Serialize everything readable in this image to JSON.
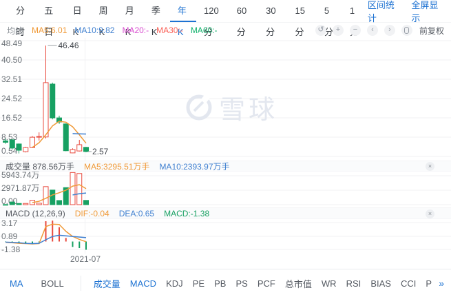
{
  "icons": {
    "close": "×",
    "undo": "↺",
    "zoom_in": "+",
    "zoom_out": "−",
    "prev": "‹",
    "next": "›",
    "more": "»"
  },
  "top_toolbar": {
    "periods": [
      {
        "label": "分时",
        "active": false
      },
      {
        "label": "五日",
        "active": false
      },
      {
        "label": "日K",
        "active": false
      },
      {
        "label": "周K",
        "active": false
      },
      {
        "label": "月K",
        "active": false
      },
      {
        "label": "季K",
        "active": false
      },
      {
        "label": "年K",
        "active": true
      },
      {
        "label": "120分",
        "active": false
      },
      {
        "label": "60分",
        "active": false
      },
      {
        "label": "30分",
        "active": false
      },
      {
        "label": "15分",
        "active": false
      },
      {
        "label": "5分",
        "active": false
      },
      {
        "label": "1分",
        "active": false
      }
    ],
    "right_links": [
      {
        "label": "区间统计",
        "name": "range-stat-link"
      },
      {
        "label": "全屏显示",
        "name": "fullscreen-link"
      }
    ]
  },
  "legend": {
    "title": "均线",
    "items": [
      {
        "label": "MA5:6.01",
        "color": "#f09a38"
      },
      {
        "label": "MA10:9.82",
        "color": "#4080d0"
      },
      {
        "label": "MA20:-",
        "color": "#d94fd0"
      },
      {
        "label": "MA30:-",
        "color": "#fa6057"
      },
      {
        "label": "MA60:-",
        "color": "#13b26d"
      }
    ],
    "buttons": [
      "undo",
      "zoom-in",
      "zoom-out",
      "pan-left",
      "pan-right",
      "screenshot"
    ],
    "adjust_label": "前复权"
  },
  "watermark": "雪球",
  "volume_header": {
    "title": "成交量 878.56万手",
    "ma5": "MA5:3295.51万手",
    "ma10": "MA10:2393.97万手"
  },
  "macd_header": {
    "title": "MACD (12,26,9)",
    "dif": "DIF:-0.04",
    "dea": "DEA:0.65",
    "macd": "MACD:-1.38"
  },
  "bottom_toolbar": {
    "left_group": [
      {
        "label": "MA",
        "active": true
      },
      {
        "label": "BOLL",
        "active": false
      }
    ],
    "indicators": [
      {
        "label": "成交量",
        "active": true
      },
      {
        "label": "MACD",
        "active": true
      },
      {
        "label": "KDJ",
        "active": false
      },
      {
        "label": "PE",
        "active": false
      },
      {
        "label": "PB",
        "active": false
      },
      {
        "label": "PS",
        "active": false
      },
      {
        "label": "PCF",
        "active": false
      },
      {
        "label": "总市值",
        "active": false
      },
      {
        "label": "WR",
        "active": false
      },
      {
        "label": "RSI",
        "active": false
      },
      {
        "label": "BIAS",
        "active": false
      },
      {
        "label": "CCI",
        "active": false
      },
      {
        "label": "P",
        "active": false
      }
    ]
  },
  "chart_data": {
    "type": "candlestick-multi-panel",
    "x_label": "2021-07",
    "colors": {
      "up": "#e8493d",
      "down": "#17a062",
      "ma5": "#f09a38",
      "ma10": "#4080d0",
      "grid": "#f0f1f3",
      "axis_text": "#6b7177",
      "annotation": "#42464c"
    },
    "price_panel": {
      "y_ticks": [
        "48.49",
        "40.50",
        "32.51",
        "24.52",
        "16.52",
        "8.53",
        "0.54"
      ],
      "candles": [
        {
          "o": 7.0,
          "h": 7.9,
          "l": 5.8,
          "c": 6.4
        },
        {
          "o": 7.4,
          "h": 7.7,
          "l": 3.4,
          "c": 4.0
        },
        {
          "o": 5.7,
          "h": 5.9,
          "l": 1.8,
          "c": 3.1
        },
        {
          "o": 2.5,
          "h": 4.5,
          "l": 2.2,
          "c": 4.2
        },
        {
          "o": 4.2,
          "h": 9.0,
          "l": 4.0,
          "c": 8.5
        },
        {
          "o": 8.5,
          "h": 10.5,
          "l": 7.1,
          "c": 8.8
        },
        {
          "o": 8.6,
          "h": 46.46,
          "l": 8.0,
          "c": 31.1
        },
        {
          "o": 30.5,
          "h": 31.1,
          "l": 15.9,
          "c": 16.5
        },
        {
          "o": 16.5,
          "h": 17.4,
          "l": 14.0,
          "c": 14.8
        },
        {
          "o": 14.0,
          "h": 14.2,
          "l": 2.7,
          "c": 2.9
        },
        {
          "o": 2.0,
          "h": 3.9,
          "l": 1.9,
          "c": 3.4
        },
        {
          "o": 2.8,
          "h": 7.4,
          "l": 2.6,
          "c": 5.4
        },
        {
          "o": 4.3,
          "h": 4.5,
          "l": 2.3,
          "c": 2.57
        }
      ],
      "ma5": [
        null,
        null,
        null,
        null,
        4.3,
        6.2,
        9.5,
        13.2,
        15.1,
        14.7,
        12.8,
        9.5,
        6.01
      ],
      "ma10": [
        null,
        null,
        null,
        null,
        null,
        null,
        null,
        null,
        null,
        null,
        10.0,
        9.9,
        9.82
      ],
      "annotations": [
        {
          "text": "46.46",
          "candle": 6,
          "value": 46.46
        },
        {
          "text": "2.57",
          "candle": 12,
          "value": 2.57
        }
      ]
    },
    "volume_panel": {
      "unit": "万",
      "y_ticks": [
        "5943.74万",
        "2971.87万",
        "0.00"
      ],
      "values": [
        30,
        550,
        250,
        250,
        900,
        300,
        3700,
        3000,
        850,
        3500,
        6600,
        6400,
        878.56
      ],
      "ma5": [
        null,
        null,
        null,
        null,
        420,
        700,
        1300,
        2000,
        2450,
        2970,
        3800,
        4100,
        3295.51
      ],
      "ma10": [
        null,
        null,
        null,
        null,
        null,
        null,
        null,
        null,
        null,
        null,
        2000,
        2250,
        2393.97
      ]
    },
    "macd_panel": {
      "y_ticks": [
        "3.17",
        "0.89",
        "-1.38"
      ],
      "histogram": [
        -0.05,
        -0.1,
        -0.25,
        -0.3,
        -0.3,
        -0.15,
        3.4,
        3.5,
        2.4,
        0.6,
        -0.9,
        -1.1,
        -1.38
      ],
      "dif": [
        -0.15,
        -0.2,
        -0.3,
        -0.35,
        -0.4,
        -0.35,
        2.5,
        2.9,
        2.85,
        1.7,
        0.85,
        0.35,
        -0.04
      ],
      "dea": [
        -0.1,
        -0.15,
        -0.2,
        -0.3,
        -0.35,
        -0.3,
        0.3,
        0.85,
        1.05,
        0.95,
        0.85,
        0.75,
        0.65
      ]
    }
  }
}
